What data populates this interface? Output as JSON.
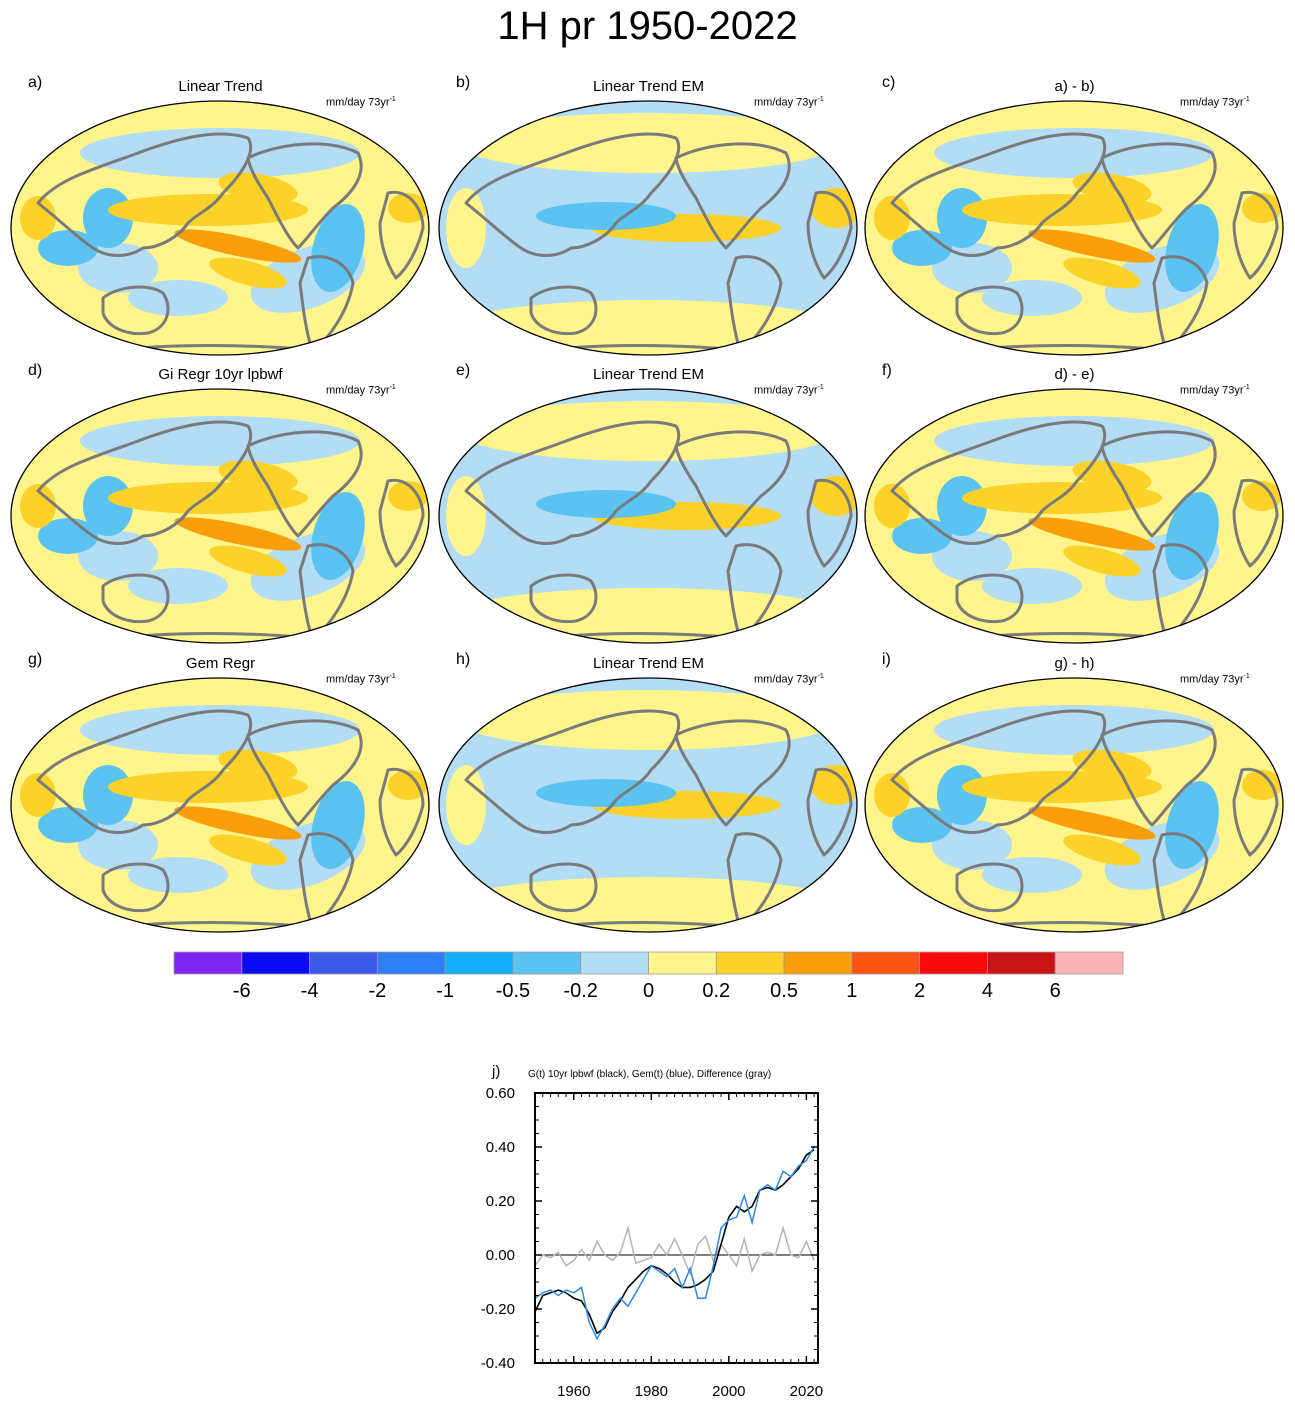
{
  "title": "1H pr 1950-2022",
  "units_text": "mm/day 73yr",
  "units_sup": "-1",
  "panels": [
    {
      "letter": "a)",
      "title": "Linear Trend"
    },
    {
      "letter": "b)",
      "title": "Linear Trend EM"
    },
    {
      "letter": "c)",
      "title": "a) - b)"
    },
    {
      "letter": "d)",
      "title": "Gi Regr 10yr lpbwf"
    },
    {
      "letter": "e)",
      "title": "Linear Trend EM"
    },
    {
      "letter": "f)",
      "title": "d) - e)"
    },
    {
      "letter": "g)",
      "title": "Gem Regr"
    },
    {
      "letter": "h)",
      "title": "Linear Trend EM"
    },
    {
      "letter": "i)",
      "title": "g) - h)"
    }
  ],
  "colorbar": {
    "labels": [
      "-6",
      "-4",
      "-2",
      "-1",
      "-0.5",
      "-0.2",
      "0",
      "0.2",
      "0.5",
      "1",
      "2",
      "4",
      "6"
    ],
    "colors": [
      "#7f25f0",
      "#0a0af5",
      "#3c5ae8",
      "#2d7ff5",
      "#14aff8",
      "#5ac3f2",
      "#b3dcf5",
      "#fff58c",
      "#fcd228",
      "#fa9e0a",
      "#fa5512",
      "#fa0a0a",
      "#c81414",
      "#fab4b4"
    ]
  },
  "colors": {
    "continent": "#7a7a7a",
    "black_series": "#000000",
    "blue_series": "#2b8ae6",
    "gray_series": "#b4b4b4"
  },
  "chart_data": {
    "type": "line",
    "panel_letter": "j)",
    "title": "G(t)  10yr lpbwf (black), Gem(t) (blue), Difference (gray)",
    "xlim": [
      1950,
      2023
    ],
    "ylim": [
      -0.4,
      0.6
    ],
    "xticks": [
      1960,
      1980,
      2000,
      2020
    ],
    "yticks": [
      "-0.40",
      "-0.20",
      "0.00",
      "0.20",
      "0.40",
      "0.60"
    ],
    "series": [
      {
        "name": "G(t) 10yr lpbwf",
        "color": "black",
        "x": [
          1950,
          1952,
          1954,
          1956,
          1958,
          1960,
          1962,
          1964,
          1966,
          1968,
          1970,
          1972,
          1974,
          1976,
          1978,
          1980,
          1982,
          1984,
          1986,
          1988,
          1990,
          1992,
          1994,
          1996,
          1998,
          2000,
          2002,
          2004,
          2006,
          2008,
          2010,
          2012,
          2014,
          2016,
          2018,
          2020,
          2022
        ],
        "y": [
          -0.21,
          -0.15,
          -0.14,
          -0.13,
          -0.14,
          -0.16,
          -0.17,
          -0.22,
          -0.29,
          -0.27,
          -0.21,
          -0.17,
          -0.12,
          -0.09,
          -0.06,
          -0.04,
          -0.05,
          -0.07,
          -0.1,
          -0.12,
          -0.12,
          -0.11,
          -0.09,
          -0.06,
          0.04,
          0.14,
          0.18,
          0.16,
          0.18,
          0.24,
          0.25,
          0.24,
          0.26,
          0.29,
          0.32,
          0.37,
          0.39
        ]
      },
      {
        "name": "Gem(t)",
        "color": "blue",
        "x": [
          1950,
          1952,
          1954,
          1956,
          1958,
          1960,
          1962,
          1964,
          1966,
          1968,
          1970,
          1972,
          1974,
          1976,
          1978,
          1980,
          1982,
          1984,
          1986,
          1988,
          1990,
          1992,
          1994,
          1996,
          1998,
          2000,
          2002,
          2004,
          2006,
          2008,
          2010,
          2012,
          2014,
          2016,
          2018,
          2020,
          2022
        ],
        "y": [
          -0.16,
          -0.14,
          -0.13,
          -0.15,
          -0.13,
          -0.14,
          -0.12,
          -0.25,
          -0.31,
          -0.26,
          -0.2,
          -0.16,
          -0.19,
          -0.14,
          -0.09,
          -0.04,
          -0.06,
          -0.08,
          -0.05,
          -0.12,
          -0.05,
          -0.16,
          -0.16,
          -0.04,
          0.1,
          0.13,
          0.14,
          0.22,
          0.12,
          0.24,
          0.26,
          0.24,
          0.31,
          0.29,
          0.33,
          0.35,
          0.4
        ]
      },
      {
        "name": "Difference",
        "color": "gray",
        "x": [
          1950,
          1952,
          1954,
          1956,
          1958,
          1960,
          1962,
          1964,
          1966,
          1968,
          1970,
          1972,
          1974,
          1976,
          1978,
          1980,
          1982,
          1984,
          1986,
          1988,
          1990,
          1992,
          1994,
          1996,
          1998,
          2000,
          2002,
          2004,
          2006,
          2008,
          2010,
          2012,
          2014,
          2016,
          2018,
          2020,
          2022
        ],
        "y": [
          -0.04,
          0.0,
          -0.01,
          0.01,
          -0.04,
          -0.02,
          0.02,
          -0.02,
          0.05,
          0.0,
          -0.02,
          0.01,
          0.1,
          -0.03,
          -0.02,
          -0.01,
          0.04,
          0.0,
          0.06,
          0.0,
          -0.07,
          0.04,
          0.07,
          -0.02,
          0.04,
          0.0,
          -0.04,
          0.06,
          -0.06,
          0.0,
          0.01,
          0.0,
          0.1,
          0.0,
          -0.01,
          0.05,
          -0.02
        ]
      }
    ]
  }
}
